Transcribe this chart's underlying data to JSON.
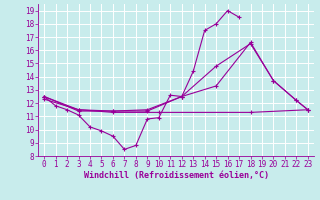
{
  "background_color": "#c8ecec",
  "grid_color": "#ffffff",
  "line_color": "#990099",
  "xlabel": "Windchill (Refroidissement éolien,°C)",
  "ylim": [
    8,
    19.5
  ],
  "xlim": [
    -0.5,
    23.5
  ],
  "yticks": [
    8,
    9,
    10,
    11,
    12,
    13,
    14,
    15,
    16,
    17,
    18,
    19
  ],
  "xticks": [
    0,
    1,
    2,
    3,
    4,
    5,
    6,
    7,
    8,
    9,
    10,
    11,
    12,
    13,
    14,
    15,
    16,
    17,
    18,
    19,
    20,
    21,
    22,
    23
  ],
  "line1_x": [
    0,
    1,
    2,
    3,
    4,
    5,
    6,
    7,
    8,
    9,
    10,
    11,
    12,
    13,
    14,
    15,
    16,
    17
  ],
  "line1_y": [
    12.5,
    11.8,
    11.5,
    11.1,
    10.2,
    9.9,
    9.5,
    8.5,
    8.8,
    10.8,
    10.9,
    12.6,
    12.5,
    14.4,
    17.5,
    18.0,
    19.0,
    18.5
  ],
  "line2_x": [
    0,
    3,
    6,
    9,
    12,
    15,
    18,
    20,
    22,
    23
  ],
  "line2_y": [
    12.5,
    11.4,
    11.4,
    11.4,
    12.5,
    14.8,
    16.5,
    13.7,
    12.2,
    11.5
  ],
  "line3_x": [
    0,
    3,
    6,
    9,
    12,
    15,
    18,
    20,
    22,
    23
  ],
  "line3_y": [
    12.5,
    11.5,
    11.4,
    11.5,
    12.5,
    13.3,
    16.6,
    13.7,
    12.2,
    11.5
  ],
  "line4_x": [
    0,
    3,
    6,
    10,
    18,
    23
  ],
  "line4_y": [
    12.3,
    11.5,
    11.3,
    11.3,
    11.3,
    11.5
  ],
  "xlabel_fontsize": 6,
  "tick_fontsize": 5.5,
  "linewidth": 0.8,
  "markersize": 2.8
}
